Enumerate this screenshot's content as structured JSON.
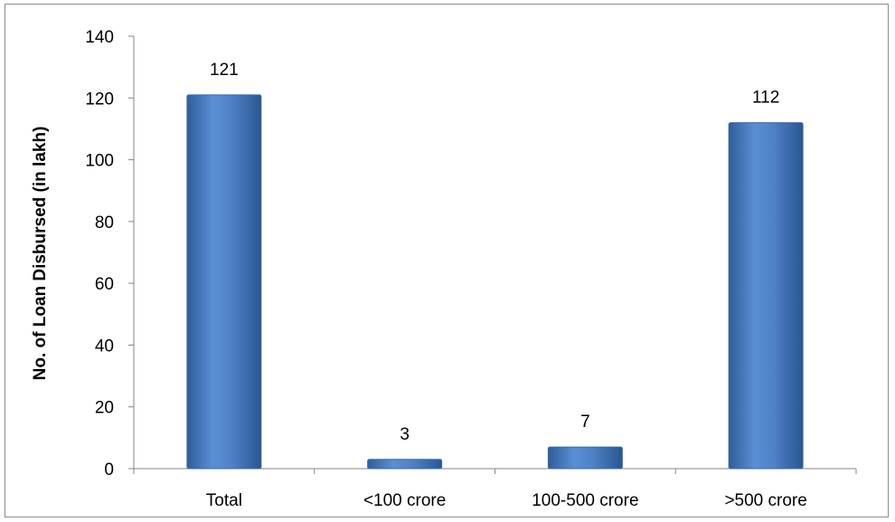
{
  "chart_data": {
    "type": "bar",
    "title": "",
    "xlabel": "",
    "ylabel": "No. of Loan Disbursed (in lakh)",
    "categories": [
      "Total",
      "<100 crore",
      "100-500 crore",
      ">500 crore"
    ],
    "values": [
      121,
      3,
      7,
      112
    ],
    "data_labels": [
      "121",
      "3",
      "7",
      "112"
    ],
    "ylim": [
      0,
      140
    ],
    "yticks": [
      0,
      20,
      40,
      60,
      80,
      100,
      120,
      140
    ],
    "grid": false,
    "legend": "none",
    "bar_color": "#4f81bd"
  }
}
